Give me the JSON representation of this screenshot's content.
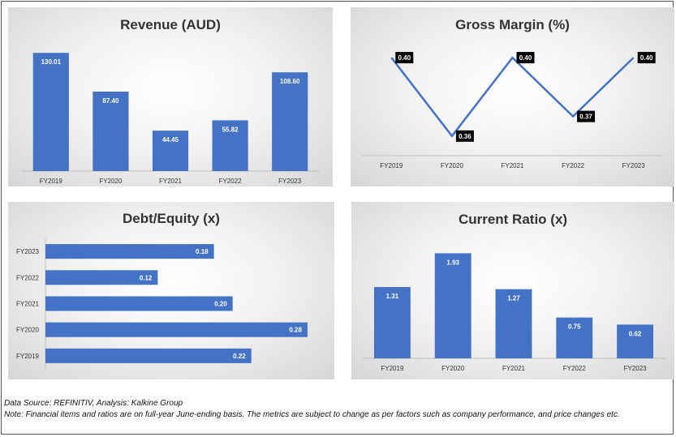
{
  "footer": {
    "source": "Data Source: REFINITIV, Analysis: Kalkine Group",
    "note": "Note: Financial items and ratios are on full-year June-ending basis. The metrics are subject to change as per factors such as company performance, and price changes etc."
  },
  "colors": {
    "bar": "#4472C4",
    "line": "#4472C4",
    "label_box": "#000000"
  },
  "chart_data": [
    {
      "type": "bar",
      "title": "Revenue (AUD)",
      "categories": [
        "FY2019",
        "FY2020",
        "FY2021",
        "FY2022",
        "FY2023"
      ],
      "values": [
        130.01,
        87.4,
        44.45,
        55.82,
        108.6
      ],
      "labels": [
        "130.01",
        "87.40",
        "44.45",
        "55.82",
        "108.60"
      ],
      "ylim": [
        0,
        140
      ]
    },
    {
      "type": "line",
      "title": "Gross Margin (%)",
      "categories": [
        "FY2019",
        "FY2020",
        "FY2021",
        "FY2022",
        "FY2023"
      ],
      "values": [
        0.4,
        0.36,
        0.4,
        0.37,
        0.4
      ],
      "labels": [
        "0.40",
        "0.36",
        "0.40",
        "0.37",
        "0.40"
      ],
      "ylim": [
        0.35,
        0.405
      ]
    },
    {
      "type": "bar",
      "orientation": "horizontal",
      "title": "Debt/Equity (x)",
      "categories": [
        "FY2023",
        "FY2022",
        "FY2021",
        "FY2020",
        "FY2019"
      ],
      "values": [
        0.18,
        0.12,
        0.2,
        0.28,
        0.22
      ],
      "labels": [
        "0.18",
        "0.12",
        "0.20",
        "0.28",
        "0.22"
      ],
      "xlim": [
        0,
        0.3
      ]
    },
    {
      "type": "bar",
      "title": "Current Ratio (x)",
      "categories": [
        "FY2019",
        "FY2020",
        "FY2021",
        "FY2022",
        "FY2023"
      ],
      "values": [
        1.31,
        1.93,
        1.27,
        0.75,
        0.62
      ],
      "labels": [
        "1.31",
        "1.93",
        "1.27",
        "0.75",
        "0.62"
      ],
      "ylim": [
        0,
        2.1
      ]
    }
  ]
}
